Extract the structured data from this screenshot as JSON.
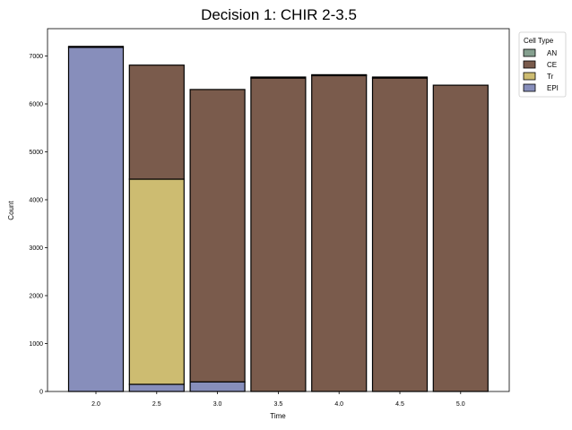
{
  "chart_data": {
    "type": "bar",
    "stacked": true,
    "title": "Decision 1: CHIR 2-3.5",
    "xlabel": "Time",
    "ylabel": "Count",
    "categories": [
      "2.0",
      "2.5",
      "3.0",
      "3.5",
      "4.0",
      "4.5",
      "5.0"
    ],
    "ylim": [
      0,
      7570
    ],
    "yticks": [
      0,
      1000,
      2000,
      3000,
      4000,
      5000,
      6000,
      7000
    ],
    "legend_title": "Cell Type",
    "legend_position": "outside-top-right",
    "grid": false,
    "series": [
      {
        "name": "EPI",
        "color": "#878ebb",
        "values": [
          7180,
          150,
          200,
          0,
          0,
          0,
          0
        ]
      },
      {
        "name": "Tr",
        "color": "#cdbc71",
        "values": [
          0,
          4280,
          0,
          0,
          0,
          0,
          0
        ]
      },
      {
        "name": "CE",
        "color": "#7a5b4c",
        "values": [
          0,
          2380,
          6100,
          6540,
          6590,
          6540,
          6390
        ]
      },
      {
        "name": "AN",
        "color": "#85a08f",
        "values": [
          20,
          0,
          0,
          20,
          20,
          20,
          0
        ]
      }
    ],
    "legend_order": [
      "AN",
      "CE",
      "Tr",
      "EPI"
    ]
  }
}
